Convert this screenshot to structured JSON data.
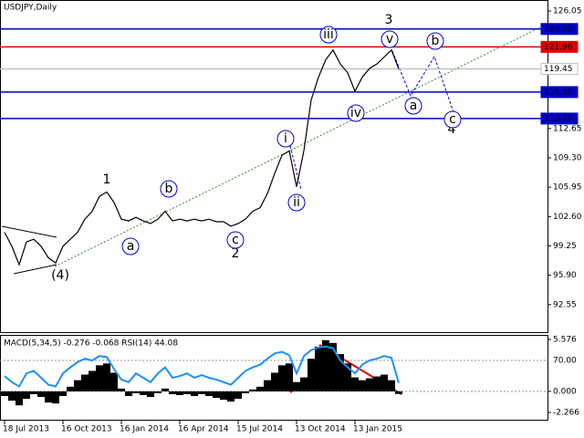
{
  "chart_data": [
    {
      "type": "line",
      "title": "USDJPY,Daily",
      "categories": [
        "18 Jul 2013",
        null,
        null,
        null,
        null,
        null,
        null,
        null,
        "16 Oct 2013",
        null,
        null,
        null,
        null,
        null,
        null,
        null,
        "16 Jan 2014",
        null,
        null,
        null,
        null,
        null,
        null,
        null,
        "16 Apr 2014",
        null,
        null,
        null,
        null,
        null,
        null,
        null,
        "15 Jul 2014",
        null,
        null,
        null,
        null,
        null,
        null,
        null,
        "13 Oct 2014",
        null,
        null,
        null,
        null,
        null,
        null,
        null,
        "13 Jan 2015",
        null,
        null,
        null,
        null,
        null,
        null
      ],
      "values": [
        100.8,
        99.2,
        97.1,
        99.7,
        100.0,
        99.2,
        97.9,
        97.3,
        99.2,
        100.0,
        100.8,
        102.3,
        103.2,
        104.9,
        105.4,
        104.2,
        102.3,
        102.1,
        102.5,
        102.1,
        101.8,
        102.3,
        103.2,
        102.1,
        102.3,
        102.1,
        102.3,
        102.1,
        102.3,
        102.0,
        102.0,
        101.5,
        101.8,
        102.3,
        103.2,
        103.6,
        105.2,
        107.5,
        109.6,
        110.1,
        106.0,
        110.1,
        115.9,
        118.5,
        120.5,
        121.6,
        120.0,
        119.0,
        116.9,
        118.5,
        119.5,
        120.0,
        120.8,
        121.6,
        119.45
      ],
      "color": "#000000",
      "ylim": [
        89.3,
        127.1
      ],
      "yticks": [
        {
          "value": 126.05,
          "label": "126.05"
        },
        {
          "value": 112.65,
          "label": "112.65"
        },
        {
          "value": 109.3,
          "label": "109.30"
        },
        {
          "value": 105.95,
          "label": "105.95"
        },
        {
          "value": 102.6,
          "label": "102.60"
        },
        {
          "value": 99.25,
          "label": "99.25"
        },
        {
          "value": 95.9,
          "label": "95.90"
        },
        {
          "value": 92.55,
          "label": "92.55"
        }
      ],
      "levels": [
        {
          "value": 124.0,
          "label": "124.00",
          "color": "#0000cc"
        },
        {
          "value": 121.96,
          "label": "121.96",
          "color": "#dd0000"
        },
        {
          "value": 119.45,
          "label": "119.45",
          "color": "#c0c0c0"
        },
        {
          "value": 116.8,
          "label": "116.80",
          "color": "#0000cc"
        },
        {
          "value": 113.78,
          "label": "113.78",
          "color": "#0000cc"
        }
      ],
      "annotations": [
        {
          "text": "1",
          "color": "#a0282d"
        },
        {
          "text": "2",
          "color": "#a0282d"
        },
        {
          "text": "3",
          "color": "#a0282d"
        },
        {
          "text": "4",
          "color": "#a0282d"
        },
        {
          "text": "(4)",
          "color": "#2e8b2e"
        },
        {
          "text": "a",
          "color": "#0000cc",
          "circle": true
        },
        {
          "text": "b",
          "color": "#0000cc",
          "circle": true
        },
        {
          "text": "c",
          "color": "#0000cc",
          "circle": true
        },
        {
          "text": "i",
          "color": "#0000cc",
          "circle": true
        },
        {
          "text": "ii",
          "color": "#0000cc",
          "circle": true
        },
        {
          "text": "iii",
          "color": "#0000cc",
          "circle": true
        },
        {
          "text": "iv",
          "color": "#0000cc",
          "circle": true
        },
        {
          "text": "v",
          "color": "#0000cc",
          "circle": true
        },
        {
          "text": "a",
          "color": "#0000cc",
          "circle": true
        },
        {
          "text": "b",
          "color": "#0000cc",
          "circle": true
        },
        {
          "text": "c",
          "color": "#0000cc",
          "circle": true
        }
      ]
    },
    {
      "type": "bar",
      "title": "MACD(5,34,5) -0.276 -0.068 RSI(14) 44.08",
      "values": [
        -0.5,
        -1.0,
        -1.5,
        -0.8,
        -0.3,
        -0.6,
        -1.2,
        -1.3,
        -0.5,
        0.5,
        1.2,
        1.8,
        2.2,
        2.8,
        3.0,
        2.0,
        0.3,
        -0.5,
        -0.2,
        -0.4,
        -0.6,
        -0.2,
        0.3,
        -0.3,
        -0.4,
        -0.3,
        -0.5,
        -0.3,
        -0.5,
        -0.7,
        -0.9,
        -1.1,
        -0.8,
        -0.2,
        0.2,
        0.5,
        1.2,
        2.0,
        2.8,
        3.0,
        1.0,
        1.5,
        3.5,
        4.8,
        5.5,
        5.2,
        4.0,
        3.0,
        1.5,
        1.2,
        1.4,
        1.6,
        1.8,
        1.2,
        -0.276
      ],
      "color": "#000000",
      "ylim": [
        -3.05,
        5.97
      ],
      "yticks": [
        5.576,
        {
          "value": 0,
          "label": "0.000"
        },
        -2.266
      ],
      "line": {
        "values": [
          52,
          45,
          40,
          55,
          58,
          50,
          42,
          40,
          55,
          62,
          68,
          72,
          70,
          75,
          74,
          60,
          48,
          45,
          55,
          50,
          45,
          55,
          62,
          50,
          52,
          55,
          50,
          53,
          50,
          48,
          45,
          42,
          50,
          58,
          62,
          65,
          72,
          78,
          80,
          76,
          55,
          75,
          82,
          85,
          86,
          84,
          70,
          62,
          55,
          65,
          70,
          72,
          75,
          73,
          44.08
        ],
        "color": "#1e90ff",
        "axis": "y2"
      },
      "y2lim": [
        1.6,
        98.4
      ],
      "y2ticks": [
        {
          "value": 70,
          "label": "70.00"
        }
      ]
    }
  ]
}
